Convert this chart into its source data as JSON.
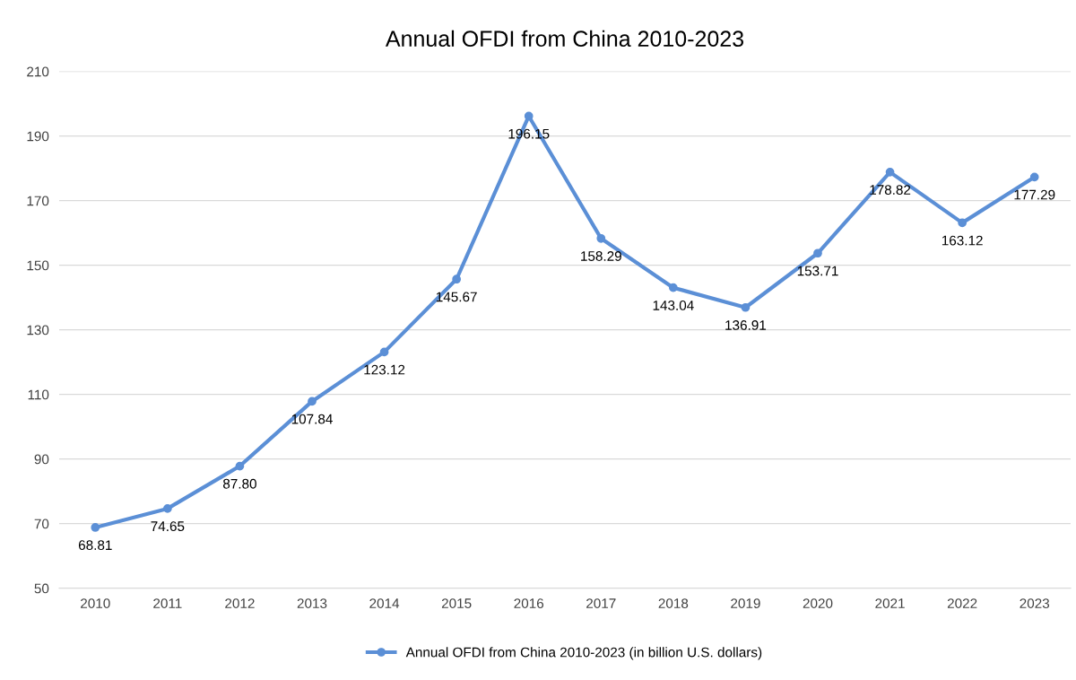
{
  "chart_data": {
    "type": "line",
    "title": "Annual OFDI from China 2010-2023",
    "categories": [
      "2010",
      "2011",
      "2012",
      "2013",
      "2014",
      "2015",
      "2016",
      "2017",
      "2018",
      "2019",
      "2020",
      "2021",
      "2022",
      "2023"
    ],
    "series": [
      {
        "name": "Annual OFDI from China 2010-2023 (in billion U.S. dollars)",
        "color": "#5b8fd6",
        "values": [
          68.81,
          74.65,
          87.8,
          107.84,
          123.12,
          145.67,
          196.15,
          158.29,
          143.04,
          136.91,
          153.71,
          178.82,
          163.12,
          177.29
        ],
        "value_labels": [
          "68.81",
          "74.65",
          "87.80",
          "107.84",
          "123.12",
          "145.67",
          "196.15",
          "158.29",
          "143.04",
          "136.91",
          "153.71",
          "178.82",
          "163.12",
          "177.29"
        ]
      }
    ],
    "ylim": [
      50,
      210
    ],
    "yticks": [
      50,
      70,
      90,
      110,
      130,
      150,
      170,
      190,
      210
    ],
    "grid": "y",
    "legend": "bottom",
    "marker": "circle",
    "line_style": "solid"
  }
}
